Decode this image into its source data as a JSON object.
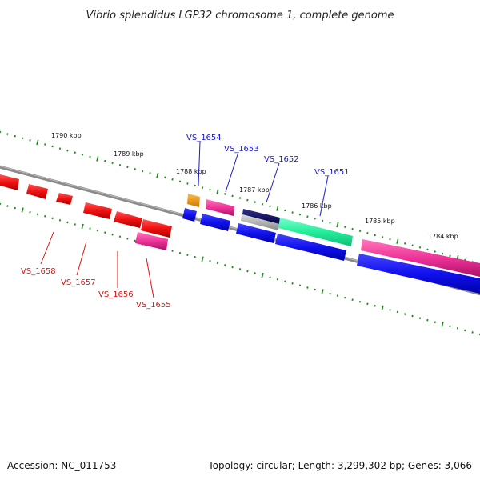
{
  "title": "Vibrio splendidus LGP32 chromosome 1, complete genome",
  "footer": {
    "accession": "Accession: NC_011753",
    "summary": "Topology: circular; Length: 3,299,302 bp; Genes: 3,066"
  },
  "colors": {
    "backbone": "#8a8a8a",
    "ticks": "#1a8a1a",
    "upper_label": "#1a1acc",
    "lower_label": "#dd1111",
    "red_gene": "#ee1111",
    "pink_gene": "#ee3399",
    "blue_gene": "#1111ee",
    "orange_gene": "#ee9911",
    "navy_gene": "#111166",
    "grey_gene": "#aaaaaa",
    "green_gene": "#22ee99"
  },
  "scale_labels": [
    "1790 kbp",
    "1789 kbp",
    "1788 kbp",
    "1787 kbp",
    "1786 kbp",
    "1785 kbp",
    "1784 kbp"
  ],
  "gene_labels_top": [
    "VS_1654",
    "VS_1653",
    "VS_1652",
    "VS_1651"
  ],
  "gene_labels_bottom": [
    "VS_1658",
    "VS_1657",
    "VS_1656",
    "VS_1655"
  ]
}
